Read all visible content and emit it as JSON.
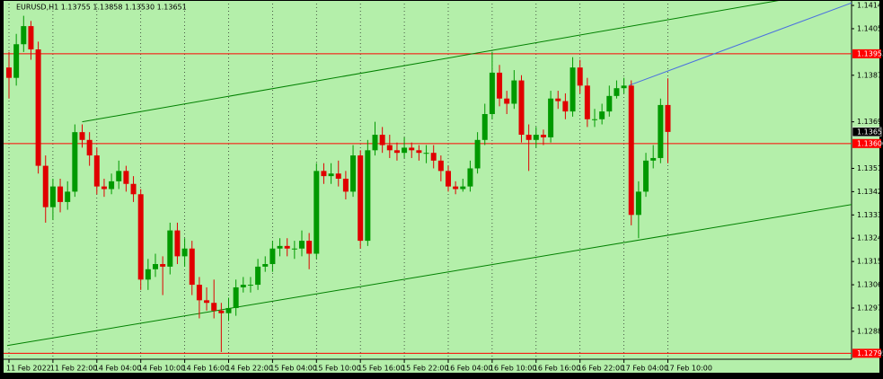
{
  "chart_data": {
    "type": "candlestick",
    "title": "EURUSD,H1  1.13755 1.13858 1.13530 1.13651",
    "categories": [
      "11 Feb 2022",
      null,
      null,
      null,
      null,
      null,
      "11 Feb 22:00",
      null,
      null,
      null,
      null,
      null,
      "14 Feb 04:00",
      null,
      null,
      null,
      null,
      null,
      "14 Feb 10:00",
      null,
      null,
      null,
      null,
      null,
      "14 Feb 16:00",
      null,
      null,
      null,
      null,
      null,
      "14 Feb 22:00",
      null,
      null,
      null,
      null,
      null,
      "15 Feb 04:00",
      null,
      null,
      null,
      null,
      null,
      "15 Feb 10:00",
      null,
      null,
      null,
      null,
      null,
      "15 Feb 16:00",
      null,
      null,
      null,
      null,
      null,
      "15 Feb 22:00",
      null,
      null,
      null,
      null,
      null,
      "16 Feb 04:00",
      null,
      null,
      null,
      null,
      null,
      "16 Feb 10:00",
      null,
      null,
      null,
      null,
      null,
      "16 Feb 16:00",
      null,
      null,
      null,
      null,
      null,
      "16 Feb 22:00",
      null,
      null,
      null,
      null,
      null,
      "17 Feb 04:00",
      null,
      null,
      null,
      null,
      null,
      "17 Feb 10:00"
    ],
    "open": [
      1.139,
      1.1386,
      1.1399,
      1.1406,
      1.1397,
      1.1352,
      1.1336,
      1.1344,
      1.1338,
      1.1342,
      1.1365,
      1.1362,
      1.1356,
      1.1344,
      1.1343,
      1.1346,
      1.135,
      1.1345,
      1.1341,
      1.1308,
      1.1312,
      1.1314,
      1.1313,
      1.1327,
      1.1317,
      1.132,
      1.1306,
      1.13,
      1.1299,
      1.1296,
      1.1295,
      1.1297,
      1.1305,
      1.1306,
      1.1306,
      1.1313,
      1.1314,
      1.132,
      1.1321,
      1.132,
      1.132,
      1.1323,
      1.1318,
      1.135,
      1.1348,
      1.1349,
      1.1347,
      1.1342,
      1.1356,
      1.1323,
      1.1358,
      1.1364,
      1.136,
      1.1358,
      1.1357,
      1.1359,
      1.1358,
      1.1357,
      1.1357,
      1.1354,
      1.135,
      1.1344,
      1.1343,
      1.1344,
      1.1351,
      1.1362,
      1.1372,
      1.1388,
      1.1378,
      1.1376,
      1.1385,
      1.1364,
      1.1362,
      1.1364,
      1.1363,
      1.1378,
      1.1377,
      1.1373,
      1.139,
      1.1383,
      1.137,
      1.137,
      1.1373,
      1.1379,
      1.1382,
      1.1383,
      1.1333,
      1.1342,
      1.1354,
      1.1355,
      1.13755
    ],
    "high": [
      1.1396,
      1.1403,
      1.141,
      1.1408,
      1.14,
      1.1356,
      1.1347,
      1.1347,
      1.1346,
      1.1368,
      1.1368,
      1.1365,
      1.1359,
      1.1347,
      1.1349,
      1.1354,
      1.1352,
      1.1348,
      1.1343,
      1.1316,
      1.1318,
      1.1317,
      1.133,
      1.133,
      1.1324,
      1.1323,
      1.1309,
      1.1305,
      1.1308,
      1.1299,
      1.1301,
      1.1308,
      1.1309,
      1.1309,
      1.1316,
      1.1317,
      1.1323,
      1.1324,
      1.1324,
      1.1323,
      1.1327,
      1.1326,
      1.1353,
      1.1353,
      1.1353,
      1.1354,
      1.135,
      1.136,
      1.1358,
      1.1362,
      1.1369,
      1.1367,
      1.1364,
      1.1361,
      1.1363,
      1.1361,
      1.136,
      1.136,
      1.136,
      1.1356,
      1.1352,
      1.1346,
      1.1347,
      1.1354,
      1.1365,
      1.1376,
      1.1396,
      1.1391,
      1.1381,
      1.1389,
      1.1387,
      1.1368,
      1.1367,
      1.1366,
      1.1381,
      1.1381,
      1.138,
      1.1394,
      1.1393,
      1.1386,
      1.1374,
      1.1376,
      1.1383,
      1.1385,
      1.1386,
      1.1385,
      1.1346,
      1.1357,
      1.136,
      1.1378,
      1.13858
    ],
    "low": [
      1.1378,
      1.1383,
      1.1396,
      1.1393,
      1.1349,
      1.133,
      1.1331,
      1.1334,
      1.1335,
      1.134,
      1.1359,
      1.1352,
      1.1341,
      1.134,
      1.1341,
      1.1343,
      1.1342,
      1.1338,
      1.1304,
      1.1304,
      1.1309,
      1.1302,
      1.131,
      1.1314,
      1.1313,
      1.1302,
      1.1293,
      1.1296,
      1.1293,
      1.128,
      1.1292,
      1.1294,
      1.1303,
      1.1303,
      1.1304,
      1.1311,
      1.1311,
      1.1317,
      1.1317,
      1.1316,
      1.1317,
      1.1312,
      1.1316,
      1.1345,
      1.1345,
      1.1344,
      1.1339,
      1.134,
      1.132,
      1.1321,
      1.1356,
      1.1357,
      1.1355,
      1.1354,
      1.1355,
      1.1355,
      1.1354,
      1.1353,
      1.1351,
      1.1346,
      1.1342,
      1.1341,
      1.1342,
      1.1342,
      1.1349,
      1.136,
      1.137,
      1.1375,
      1.1372,
      1.1374,
      1.1361,
      1.135,
      1.1359,
      1.136,
      1.1361,
      1.1374,
      1.137,
      1.1371,
      1.138,
      1.1367,
      1.1367,
      1.1368,
      1.1371,
      1.1378,
      1.138,
      1.1329,
      1.1324,
      1.134,
      1.1351,
      1.1353,
      1.1353
    ],
    "close": [
      1.1386,
      1.1399,
      1.1406,
      1.1397,
      1.1352,
      1.1336,
      1.1344,
      1.1338,
      1.1342,
      1.1365,
      1.1362,
      1.1356,
      1.1344,
      1.1343,
      1.1346,
      1.135,
      1.1345,
      1.1341,
      1.1308,
      1.1312,
      1.1314,
      1.1313,
      1.1327,
      1.1317,
      1.132,
      1.1306,
      1.13,
      1.1299,
      1.1296,
      1.1295,
      1.1297,
      1.1305,
      1.1306,
      1.1306,
      1.1313,
      1.1314,
      1.132,
      1.1321,
      1.132,
      1.132,
      1.1323,
      1.1318,
      1.135,
      1.1348,
      1.1349,
      1.1347,
      1.1342,
      1.1356,
      1.1323,
      1.1358,
      1.1364,
      1.136,
      1.1358,
      1.1357,
      1.1359,
      1.1358,
      1.1357,
      1.1357,
      1.1354,
      1.135,
      1.1344,
      1.1343,
      1.1344,
      1.1351,
      1.1362,
      1.1372,
      1.1388,
      1.1378,
      1.1376,
      1.1385,
      1.1364,
      1.1362,
      1.1364,
      1.1363,
      1.1378,
      1.1377,
      1.1373,
      1.139,
      1.1383,
      1.137,
      1.137,
      1.1373,
      1.1379,
      1.1382,
      1.1383,
      1.1333,
      1.1342,
      1.1354,
      1.1355,
      1.13755,
      1.13651
    ],
    "up_color": "#009900",
    "down_color": "#e00000",
    "background": "#b4efaa",
    "ylim": [
      1.12772,
      1.14161
    ],
    "yticks": [
      {
        "value": 1.1414,
        "label": "1.14140"
      },
      {
        "value": 1.1405,
        "label": "1.14050"
      },
      {
        "value": 1.1387,
        "label": "1.13870"
      },
      {
        "value": 1.1369,
        "label": "1.13690"
      },
      {
        "value": 1.1351,
        "label": "1.13510"
      },
      {
        "value": 1.1342,
        "label": "1.13420"
      },
      {
        "value": 1.1333,
        "label": "1.13330"
      },
      {
        "value": 1.1324,
        "label": "1.13240"
      },
      {
        "value": 1.1315,
        "label": "1.13150"
      },
      {
        "value": 1.1306,
        "label": "1.13060"
      },
      {
        "value": 1.1297,
        "label": "1.12970"
      },
      {
        "value": 1.1288,
        "label": "1.12880"
      }
    ],
    "grid": true,
    "levels": [
      {
        "value": 1.13953,
        "color": "#ff0000"
      },
      {
        "value": 1.13606,
        "color": "#ff0000"
      },
      {
        "value": 1.12795,
        "color": "#ff0000"
      }
    ],
    "last_price": 1.13651,
    "trendlines": [
      {
        "color": "#008000",
        "x": [
          10,
          105.5
        ],
        "y": [
          1.1369,
          1.14161
        ]
      },
      {
        "color": "#008000",
        "x": [
          -0.25,
          115.1
        ],
        "y": [
          1.12825,
          1.1337
        ]
      },
      {
        "color": "#4a6fe0",
        "x": [
          84.7,
          115.1
        ],
        "y": [
          1.13831,
          1.1415
        ]
      }
    ]
  }
}
